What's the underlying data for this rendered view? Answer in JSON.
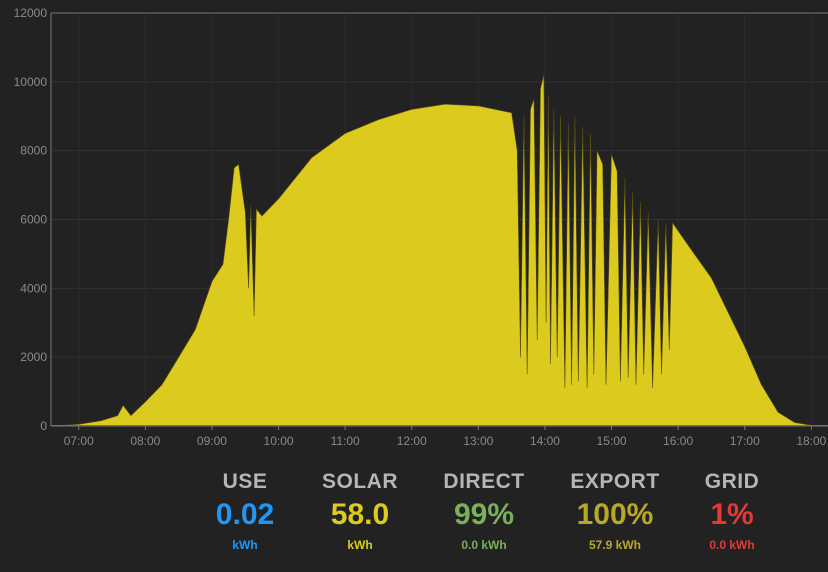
{
  "chart_data": {
    "type": "area",
    "title": "",
    "xlabel": "",
    "ylabel": "",
    "ylim": [
      0,
      12000
    ],
    "y_ticks": [
      0,
      2000,
      4000,
      6000,
      8000,
      10000,
      12000
    ],
    "x_ticks": [
      "07:00",
      "08:00",
      "09:00",
      "10:00",
      "11:00",
      "12:00",
      "13:00",
      "14:00",
      "15:00",
      "16:00",
      "17:00",
      "18:00"
    ],
    "x_range": [
      "06:35",
      "18:15"
    ],
    "grid": true,
    "colors": {
      "solar": "#dccb1e",
      "use": "#2f7fb3"
    },
    "series": [
      {
        "values": [
          [
            "06:35",
            0
          ],
          [
            "07:00",
            50
          ],
          [
            "07:20",
            150
          ],
          [
            "07:35",
            300
          ],
          [
            "07:40",
            600
          ],
          [
            "07:47",
            300
          ],
          [
            "08:00",
            700
          ],
          [
            "08:15",
            1200
          ],
          [
            "08:30",
            2000
          ],
          [
            "08:45",
            2800
          ],
          [
            "09:00",
            4200
          ],
          [
            "09:10",
            4700
          ],
          [
            "09:15",
            6000
          ],
          [
            "09:20",
            7500
          ],
          [
            "09:24",
            7600
          ],
          [
            "09:30",
            6200
          ],
          [
            "09:33",
            4000
          ],
          [
            "09:35",
            6400
          ],
          [
            "09:38",
            3200
          ],
          [
            "09:40",
            6300
          ],
          [
            "09:45",
            6100
          ],
          [
            "10:00",
            6600
          ],
          [
            "10:30",
            7800
          ],
          [
            "11:00",
            8500
          ],
          [
            "11:30",
            8900
          ],
          [
            "12:00",
            9200
          ],
          [
            "12:30",
            9350
          ],
          [
            "13:00",
            9300
          ],
          [
            "13:30",
            9100
          ],
          [
            "13:35",
            8000
          ],
          [
            "13:38",
            2000
          ],
          [
            "13:41",
            9000
          ],
          [
            "13:44",
            1500
          ],
          [
            "13:47",
            9200
          ],
          [
            "13:50",
            9500
          ],
          [
            "13:53",
            2500
          ],
          [
            "13:56",
            9800
          ],
          [
            "13:59",
            10200
          ],
          [
            "14:01",
            3000
          ],
          [
            "14:03",
            9600
          ],
          [
            "14:05",
            1800
          ],
          [
            "14:08",
            9200
          ],
          [
            "14:11",
            2000
          ],
          [
            "14:14",
            9000
          ],
          [
            "14:18",
            1100
          ],
          [
            "14:21",
            8800
          ],
          [
            "14:24",
            1200
          ],
          [
            "14:27",
            9000
          ],
          [
            "14:30",
            1300
          ],
          [
            "14:34",
            8700
          ],
          [
            "14:38",
            1100
          ],
          [
            "14:41",
            8500
          ],
          [
            "14:44",
            1500
          ],
          [
            "14:47",
            8000
          ],
          [
            "14:52",
            7600
          ],
          [
            "14:55",
            1200
          ],
          [
            "15:00",
            7900
          ],
          [
            "15:05",
            7400
          ],
          [
            "15:08",
            1300
          ],
          [
            "15:12",
            7200
          ],
          [
            "15:15",
            1400
          ],
          [
            "15:19",
            6800
          ],
          [
            "15:22",
            1200
          ],
          [
            "15:26",
            6500
          ],
          [
            "15:29",
            1500
          ],
          [
            "15:33",
            6200
          ],
          [
            "15:37",
            1100
          ],
          [
            "15:42",
            6000
          ],
          [
            "15:45",
            1500
          ],
          [
            "15:49",
            5900
          ],
          [
            "15:52",
            2200
          ],
          [
            "15:55",
            5900
          ],
          [
            "16:10",
            5200
          ],
          [
            "16:30",
            4300
          ],
          [
            "16:45",
            3300
          ],
          [
            "17:00",
            2300
          ],
          [
            "17:15",
            1200
          ],
          [
            "17:30",
            400
          ],
          [
            "17:45",
            100
          ],
          [
            "18:00",
            20
          ],
          [
            "18:15",
            0
          ]
        ]
      }
    ]
  },
  "summary": {
    "use": {
      "label": "USE",
      "value": "0.02",
      "sub": "kWh",
      "color": "#2196f3"
    },
    "solar": {
      "label": "SOLAR",
      "value": "58.0",
      "sub": "kWh",
      "color": "#dccb1e"
    },
    "direct": {
      "label": "DIRECT",
      "value": "99%",
      "sub": "0.0 kWh",
      "color": "#7ab05a"
    },
    "export": {
      "label": "EXPORT",
      "value": "100%",
      "sub": "57.9 kWh",
      "color": "#b8a828"
    },
    "grid": {
      "label": "GRID",
      "value": "1%",
      "sub": "0.0 kWh",
      "color": "#e53935"
    }
  }
}
